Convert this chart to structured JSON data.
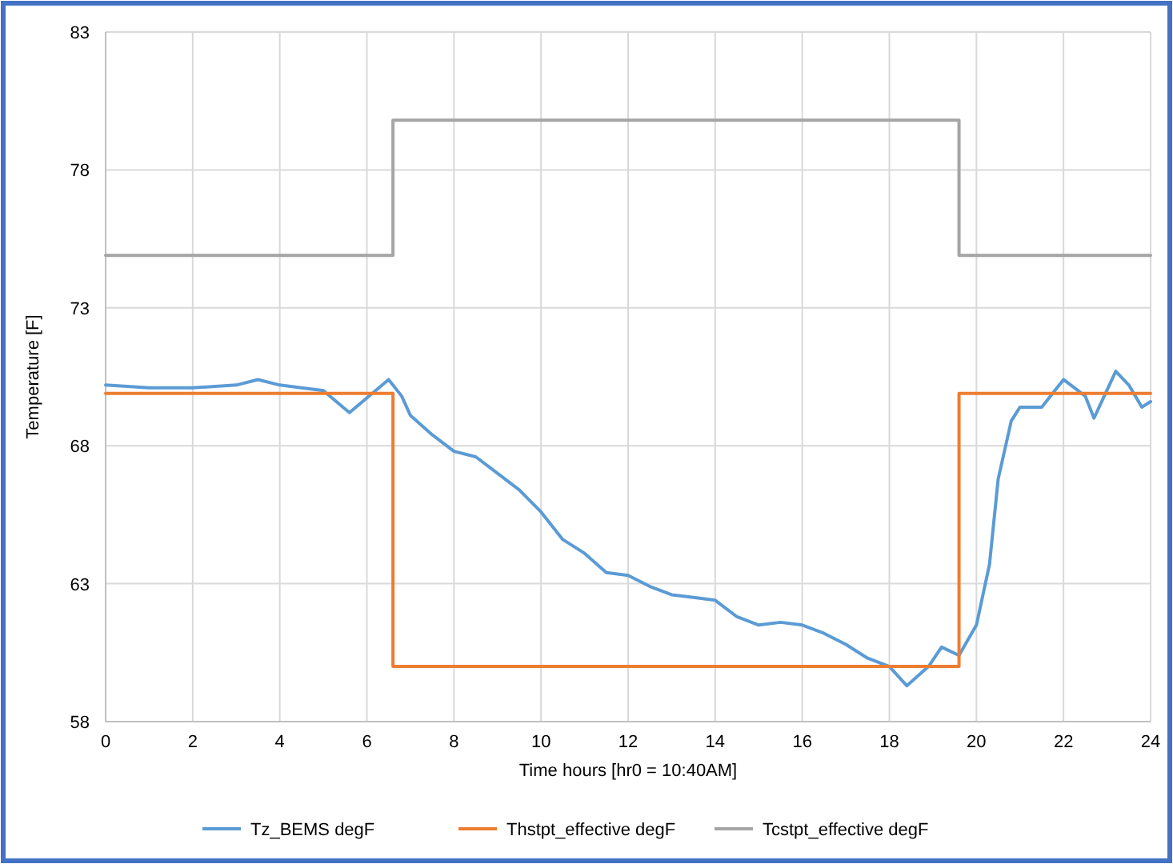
{
  "chart_data": {
    "type": "line",
    "xlabel": "Time hours [hr0 = 10:40AM]",
    "ylabel": "Temperature [F]",
    "xlim": [
      0,
      24
    ],
    "xticks": [
      0,
      2,
      4,
      6,
      8,
      10,
      12,
      14,
      16,
      18,
      20,
      22,
      24
    ],
    "ylim": [
      58,
      83
    ],
    "yticks": [
      58,
      63,
      68,
      73,
      78,
      83
    ],
    "grid": true,
    "legend": "bottom",
    "marker": "none",
    "line_style": "solid",
    "series": [
      {
        "name": "Tz_BEMS degF",
        "color": "#5b9bd5",
        "x": [
          0,
          1,
          2,
          3,
          3.5,
          4,
          5,
          5.6,
          6.2,
          6.5,
          6.8,
          7,
          7.5,
          8,
          8.5,
          9,
          9.5,
          10,
          10.5,
          11,
          11.5,
          12,
          12.5,
          13,
          13.5,
          14,
          14.5,
          15,
          15.5,
          16,
          16.5,
          17,
          17.5,
          18,
          18.4,
          18.9,
          19.2,
          19.6,
          20,
          20.3,
          20.5,
          20.8,
          21,
          21.5,
          22,
          22.5,
          22.7,
          23.2,
          23.5,
          23.8,
          24
        ],
        "values": [
          70.2,
          70.1,
          70.1,
          70.2,
          70.4,
          70.2,
          70,
          69.2,
          70,
          70.4,
          69.8,
          69.1,
          68.4,
          67.8,
          67.6,
          67,
          66.4,
          65.6,
          64.6,
          64.1,
          63.4,
          63.3,
          62.9,
          62.6,
          62.5,
          62.4,
          61.8,
          61.5,
          61.6,
          61.5,
          61.2,
          60.8,
          60.3,
          60,
          59.3,
          60,
          60.7,
          60.4,
          61.5,
          63.7,
          66.8,
          68.9,
          69.4,
          69.4,
          70.4,
          69.8,
          69,
          70.7,
          70.2,
          69.4,
          69.6
        ]
      },
      {
        "name": "Thstpt_effective degF",
        "color": "#ed7d31",
        "type": "step",
        "x": [
          0,
          6.6,
          19.6,
          24
        ],
        "values": [
          69.9,
          60,
          69.9,
          69.9
        ]
      },
      {
        "name": "Tcstpt_effective degF",
        "color": "#a5a5a5",
        "type": "step",
        "x": [
          0,
          6.6,
          19.6,
          24
        ],
        "values": [
          74.9,
          79.8,
          74.9,
          74.9
        ]
      }
    ]
  }
}
